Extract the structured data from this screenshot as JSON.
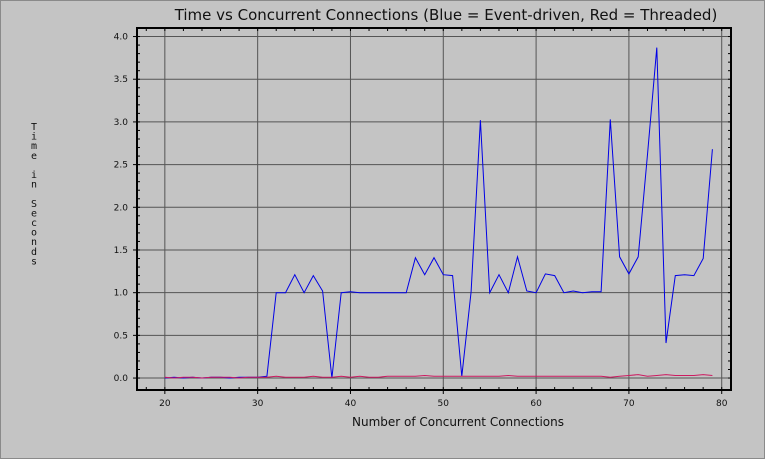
{
  "chart_data": {
    "type": "line",
    "title": "Time vs Concurrent Connections (Blue = Event-driven, Red = Threaded)",
    "xlabel": "Number of Concurrent Connections",
    "ylabel": "Time in Seconds",
    "xlim": [
      17,
      81
    ],
    "ylim": [
      -0.14,
      4.1
    ],
    "xticks": [
      20,
      30,
      40,
      50,
      60,
      70,
      80
    ],
    "yticks": [
      0.0,
      0.5,
      1.0,
      1.5,
      2.0,
      2.5,
      3.0,
      3.5,
      4.0
    ],
    "xtick_labels": [
      "20",
      "30",
      "40",
      "50",
      "60",
      "70",
      "80"
    ],
    "ytick_labels": [
      "0.0",
      "0.5",
      "1.0",
      "1.5",
      "2.0",
      "2.5",
      "3.0",
      "3.5",
      "4.0"
    ],
    "grid": true,
    "series": [
      {
        "color": "#0000e6",
        "x": [
          20,
          21,
          22,
          23,
          24,
          25,
          26,
          27,
          28,
          29,
          30,
          31,
          32,
          33,
          34,
          35,
          36,
          37,
          38,
          39,
          40,
          41,
          42,
          43,
          44,
          45,
          46,
          47,
          48,
          49,
          50,
          51,
          52,
          53,
          54,
          55,
          56,
          57,
          58,
          59,
          60,
          61,
          62,
          63,
          64,
          65,
          66,
          67,
          68,
          69,
          70,
          71,
          72,
          73,
          74,
          75,
          76,
          77,
          78,
          79
        ],
        "y": [
          0.0,
          0.01,
          0.0,
          0.01,
          0.0,
          0.01,
          0.01,
          0.0,
          0.01,
          0.01,
          0.01,
          0.02,
          1.0,
          1.0,
          1.21,
          1.0,
          1.2,
          1.02,
          0.0,
          1.0,
          1.01,
          1.0,
          1.0,
          1.0,
          1.0,
          1.0,
          1.0,
          1.41,
          1.21,
          1.41,
          1.21,
          1.2,
          0.02,
          1.01,
          3.02,
          1.0,
          1.21,
          1.0,
          1.42,
          1.02,
          1.0,
          1.22,
          1.2,
          1.0,
          1.02,
          1.0,
          1.01,
          1.01,
          3.03,
          1.42,
          1.22,
          1.42,
          2.62,
          3.87,
          0.41,
          1.2,
          1.21,
          1.2,
          1.4,
          2.68
        ]
      },
      {
        "color": "#cc1a60",
        "x": [
          20,
          21,
          22,
          23,
          24,
          25,
          26,
          27,
          28,
          29,
          30,
          31,
          32,
          33,
          34,
          35,
          36,
          37,
          38,
          39,
          40,
          41,
          42,
          43,
          44,
          45,
          46,
          47,
          48,
          49,
          50,
          51,
          52,
          53,
          54,
          55,
          56,
          57,
          58,
          59,
          60,
          61,
          62,
          63,
          64,
          65,
          66,
          67,
          68,
          69,
          70,
          71,
          72,
          73,
          74,
          75,
          76,
          77,
          78,
          79
        ],
        "y": [
          0.01,
          0.0,
          0.01,
          0.01,
          0.0,
          0.01,
          0.01,
          0.01,
          0.0,
          0.01,
          0.01,
          0.01,
          0.02,
          0.01,
          0.01,
          0.01,
          0.02,
          0.01,
          0.01,
          0.02,
          0.01,
          0.02,
          0.01,
          0.01,
          0.02,
          0.02,
          0.02,
          0.02,
          0.03,
          0.02,
          0.02,
          0.02,
          0.02,
          0.02,
          0.02,
          0.02,
          0.02,
          0.03,
          0.02,
          0.02,
          0.02,
          0.02,
          0.02,
          0.02,
          0.02,
          0.02,
          0.02,
          0.02,
          0.01,
          0.02,
          0.03,
          0.04,
          0.02,
          0.03,
          0.04,
          0.03,
          0.03,
          0.03,
          0.04,
          0.03
        ]
      }
    ]
  }
}
